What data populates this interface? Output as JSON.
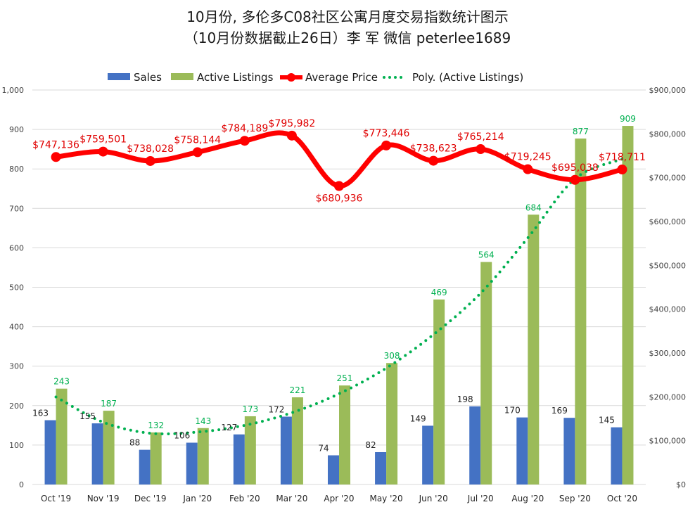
{
  "chart_data": {
    "type": "bar",
    "title": "10月份, 多伦多C08社区公寓月度交易指数统计图示",
    "subtitle": "（10月份数据截止26日）李 军  微信  peterlee1689",
    "categories": [
      "Oct '19",
      "Nov '19",
      "Dec '19",
      "Jan '20",
      "Feb '20",
      "Mar '20",
      "Apr '20",
      "May '20",
      "Jun '20",
      "Jul '20",
      "Aug '20",
      "Sep '20",
      "Oct '20"
    ],
    "series": [
      {
        "name": "Sales",
        "type": "bar",
        "axis": "left",
        "color": "#4472c4",
        "values": [
          163,
          155,
          88,
          106,
          127,
          172,
          74,
          82,
          149,
          198,
          170,
          169,
          145
        ],
        "labels": [
          "163",
          "155",
          "88",
          "106",
          "127",
          "172",
          "74",
          "82",
          "149",
          "198",
          "170",
          "169",
          "145"
        ]
      },
      {
        "name": "Active Listings",
        "type": "bar",
        "axis": "left",
        "color": "#9bbb59",
        "values": [
          243,
          187,
          132,
          143,
          173,
          221,
          251,
          308,
          469,
          564,
          684,
          877,
          909
        ],
        "labels": [
          "243",
          "187",
          "132",
          "143",
          "173",
          "221",
          "251",
          "308",
          "469",
          "564",
          "684",
          "877",
          "909"
        ]
      },
      {
        "name": "Average Price",
        "type": "line",
        "axis": "right",
        "color": "#ff0000",
        "values": [
          747136,
          759501,
          738028,
          758144,
          784189,
          795982,
          680936,
          773446,
          738623,
          765214,
          719245,
          695038,
          718711
        ],
        "labels": [
          "$747,136",
          "$759,501",
          "$738,028",
          "$758,144",
          "$784,189",
          "$795,982",
          "$680,936",
          "$773,446",
          "$738,623",
          "$765,214",
          "$719,245",
          "$695,038",
          "$718,711"
        ]
      },
      {
        "name": "Poly. (Active Listings)",
        "type": "trendline",
        "axis": "left",
        "color": "#00b050",
        "values": [
          222,
          158,
          130,
          133,
          150,
          182,
          230,
          295,
          380,
          485,
          625,
          775,
          825
        ]
      }
    ],
    "y_left": {
      "min": 0,
      "max": 1000,
      "ticks": [
        "0",
        "100",
        "200",
        "300",
        "400",
        "500",
        "600",
        "700",
        "800",
        "900",
        "1,000"
      ]
    },
    "y_right": {
      "min": 0,
      "max": 900000,
      "ticks": [
        "$0",
        "$100,000",
        "$200,000",
        "$300,000",
        "$400,000",
        "$500,000",
        "$600,000",
        "$700,000",
        "$800,000",
        "$900,000"
      ]
    },
    "grid": true,
    "legend": "top-center",
    "label_colors": {
      "sales": "#1f1f1f",
      "listings": "#00b050",
      "price": "#e00000"
    }
  }
}
